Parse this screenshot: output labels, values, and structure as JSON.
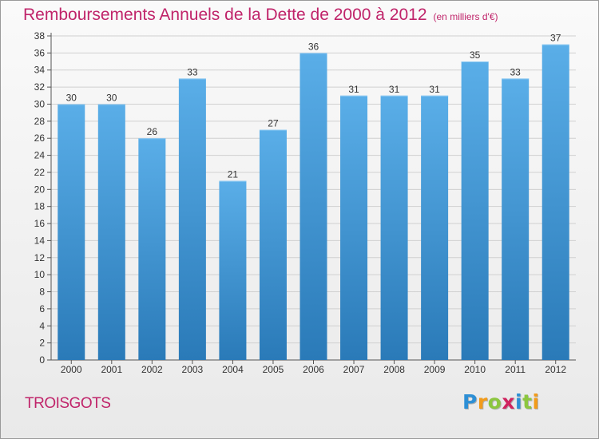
{
  "title": "Remboursements Annuels de la Dette de 2000 à 2012",
  "subtitle": "(en milliers d'€)",
  "commune": "TROISGOTS",
  "logo": {
    "letters": [
      "P",
      "r",
      "o",
      "x",
      "i",
      "t",
      "i"
    ],
    "colors": [
      "#2d8fd5",
      "#f29b1a",
      "#8cc63f",
      "#d0245f",
      "#2d8fd5",
      "#8cc63f",
      "#f29b1a"
    ]
  },
  "colors": {
    "bar_top": "#5aaee8",
    "bar_bottom": "#2a7ab8",
    "title": "#c0246a",
    "axis_text": "#333333"
  },
  "chart_data": {
    "type": "bar",
    "title": "Remboursements Annuels de la Dette de 2000 à 2012",
    "subtitle": "(en milliers d'€)",
    "categories": [
      "2000",
      "2001",
      "2002",
      "2003",
      "2004",
      "2005",
      "2006",
      "2007",
      "2008",
      "2009",
      "2010",
      "2011",
      "2012"
    ],
    "values": [
      30,
      30,
      26,
      33,
      21,
      27,
      36,
      31,
      31,
      31,
      35,
      33,
      37
    ],
    "ylim": [
      0,
      38
    ],
    "yticks": [
      0,
      2,
      4,
      6,
      8,
      10,
      12,
      14,
      16,
      18,
      20,
      22,
      24,
      26,
      28,
      30,
      32,
      34,
      36,
      38
    ],
    "grid": true,
    "data_labels": true
  }
}
